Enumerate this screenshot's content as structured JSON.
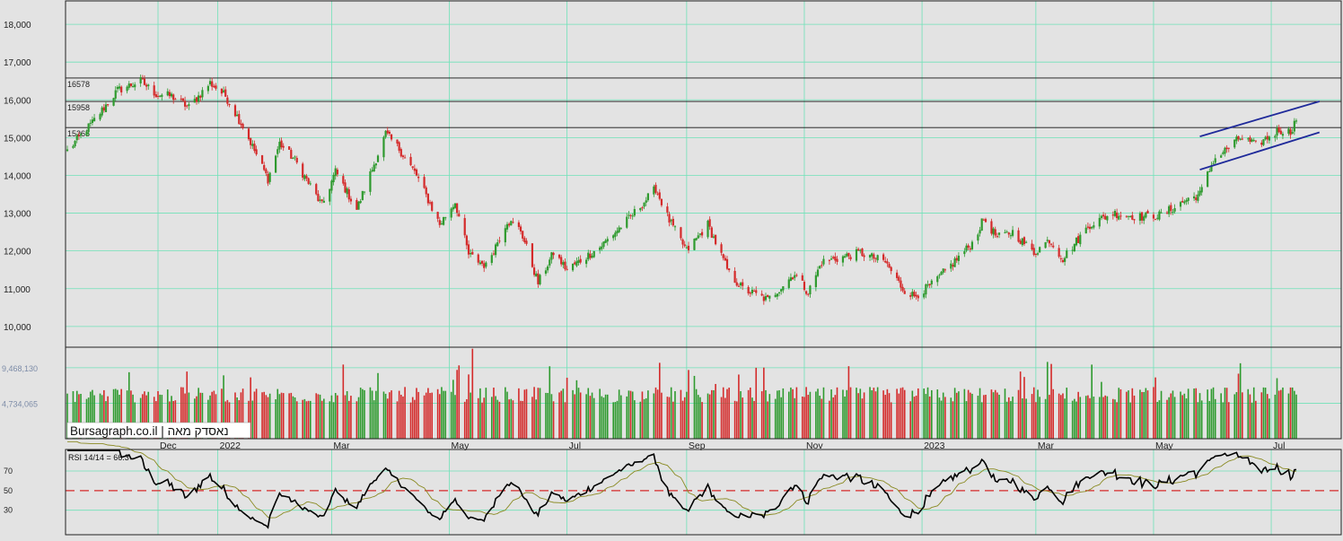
{
  "colors": {
    "background": "#e3e3e3",
    "grid": "#6fe2b8",
    "up": "#2e9a2e",
    "down": "#d42a2a",
    "channel": "#1f2a9a",
    "level_line": "#111111",
    "rsi_line": "#000000",
    "rsi_avg": "#8a8a22",
    "rsi_ref": "#d42a2a",
    "axis_text": "#222222",
    "volume_axis_text": "#7d8ca8"
  },
  "watermark": "Bursagraph.co.il | נאסדק מאה",
  "chart_data": [
    {
      "type": "candlestick",
      "panel": "price",
      "y_ticks": [
        "18,000",
        "17,000",
        "16,000",
        "15,000",
        "14,000",
        "13,000",
        "12,000",
        "11,000",
        "10,000"
      ],
      "y_tick_values": [
        18000,
        17000,
        16000,
        15000,
        14000,
        13000,
        12000,
        11000,
        10000
      ],
      "ylim": [
        9450,
        18620
      ],
      "grid": true,
      "levels": [
        {
          "label": "16578",
          "value": 16578
        },
        {
          "label": "15958",
          "value": 15958
        },
        {
          "label": "15265",
          "value": 15265
        }
      ],
      "channel": [
        {
          "from": [
            "2023-05-25",
            15030
          ],
          "to": [
            "2023-07-26",
            15960
          ]
        },
        {
          "from": [
            "2023-05-25",
            14150
          ],
          "to": [
            "2023-07-26",
            15140
          ]
        }
      ],
      "anchors": [
        [
          "2021-10-15",
          14650
        ],
        [
          "2021-10-28",
          15400
        ],
        [
          "2021-11-10",
          16250
        ],
        [
          "2021-11-22",
          16500
        ],
        [
          "2021-11-30",
          16150
        ],
        [
          "2021-12-08",
          16100
        ],
        [
          "2021-12-17",
          15800
        ],
        [
          "2021-12-28",
          16450
        ],
        [
          "2022-01-05",
          16100
        ],
        [
          "2022-01-14",
          15300
        ],
        [
          "2022-01-27",
          13900
        ],
        [
          "2022-02-02",
          14850
        ],
        [
          "2022-02-10",
          14400
        ],
        [
          "2022-02-24",
          13200
        ],
        [
          "2022-03-03",
          14100
        ],
        [
          "2022-03-14",
          13100
        ],
        [
          "2022-03-29",
          15100
        ],
        [
          "2022-04-05",
          14700
        ],
        [
          "2022-04-14",
          14000
        ],
        [
          "2022-04-26",
          12700
        ],
        [
          "2022-05-04",
          13300
        ],
        [
          "2022-05-11",
          11900
        ],
        [
          "2022-05-20",
          11600
        ],
        [
          "2022-05-31",
          12800
        ],
        [
          "2022-06-07",
          12550
        ],
        [
          "2022-06-16",
          11150
        ],
        [
          "2022-06-24",
          11950
        ],
        [
          "2022-07-01",
          11500
        ],
        [
          "2022-07-18",
          12100
        ],
        [
          "2022-08-03",
          12900
        ],
        [
          "2022-08-16",
          13650
        ],
        [
          "2022-08-23",
          12800
        ],
        [
          "2022-09-01",
          12000
        ],
        [
          "2022-09-12",
          12700
        ],
        [
          "2022-09-23",
          11400
        ],
        [
          "2022-09-30",
          11000
        ],
        [
          "2022-10-13",
          10700
        ],
        [
          "2022-10-27",
          11400
        ],
        [
          "2022-11-03",
          10900
        ],
        [
          "2022-11-10",
          11700
        ],
        [
          "2022-11-30",
          11950
        ],
        [
          "2022-12-13",
          11700
        ],
        [
          "2022-12-22",
          11000
        ],
        [
          "2022-12-28",
          10800
        ],
        [
          "2023-01-06",
          11100
        ],
        [
          "2023-01-27",
          12200
        ],
        [
          "2023-02-02",
          12850
        ],
        [
          "2023-02-09",
          12350
        ],
        [
          "2023-02-17",
          12500
        ],
        [
          "2023-02-28",
          11950
        ],
        [
          "2023-03-08",
          12300
        ],
        [
          "2023-03-15",
          11800
        ],
        [
          "2023-03-29",
          12700
        ],
        [
          "2023-04-10",
          13000
        ],
        [
          "2023-04-24",
          12900
        ],
        [
          "2023-05-05",
          12950
        ],
        [
          "2023-05-18",
          13350
        ],
        [
          "2023-05-25",
          13500
        ],
        [
          "2023-06-01",
          14400
        ],
        [
          "2023-06-15",
          15000
        ],
        [
          "2023-06-23",
          14800
        ],
        [
          "2023-07-05",
          15200
        ],
        [
          "2023-07-11",
          15150
        ],
        [
          "2023-07-14",
          15500
        ]
      ]
    },
    {
      "type": "bar",
      "panel": "volume",
      "y_ticks": [
        "9,468,130",
        "4,734,065"
      ],
      "y_tick_values": [
        9468130,
        4734065
      ],
      "ylim": [
        0,
        12200000
      ],
      "typical": 6000000
    },
    {
      "type": "line",
      "panel": "rsi",
      "label": "RSI 14/14 = 66.3",
      "last_value": 66.3,
      "y_ticks": [
        "70",
        "50",
        "30"
      ],
      "y_tick_values": [
        70,
        50,
        30
      ],
      "reference": 50,
      "ylim": [
        5,
        92
      ],
      "average_period": 14
    }
  ],
  "x_axis": {
    "labels": [
      {
        "text": "Dec",
        "date": "2021-12-01"
      },
      {
        "text": "2022",
        "date": "2022-01-01"
      },
      {
        "text": "Mar",
        "date": "2022-03-01"
      },
      {
        "text": "May",
        "date": "2022-05-01"
      },
      {
        "text": "Jul",
        "date": "2022-07-01"
      },
      {
        "text": "Sep",
        "date": "2022-09-01"
      },
      {
        "text": "Nov",
        "date": "2022-11-01"
      },
      {
        "text": "2023",
        "date": "2023-01-01"
      },
      {
        "text": "Mar",
        "date": "2023-03-01"
      },
      {
        "text": "May",
        "date": "2023-05-01"
      },
      {
        "text": "Jul",
        "date": "2023-07-01"
      }
    ],
    "range": [
      "2021-10-15",
      "2023-07-14"
    ],
    "axis_end": "2023-08-18"
  }
}
